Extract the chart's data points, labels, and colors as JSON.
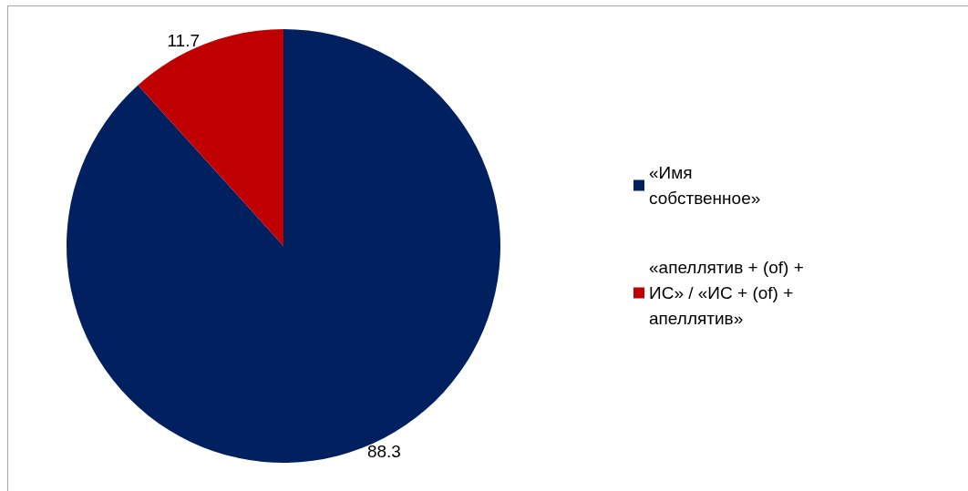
{
  "chart_data": {
    "type": "pie",
    "categories": [
      "«Имя собственное»",
      "«апеллятив + (of) + ИС» / «ИС + (of) + апеллятив»"
    ],
    "values": [
      88.3,
      11.7
    ],
    "colors": [
      "#002060",
      "#c00000"
    ],
    "data_labels": true,
    "legend": "right"
  }
}
